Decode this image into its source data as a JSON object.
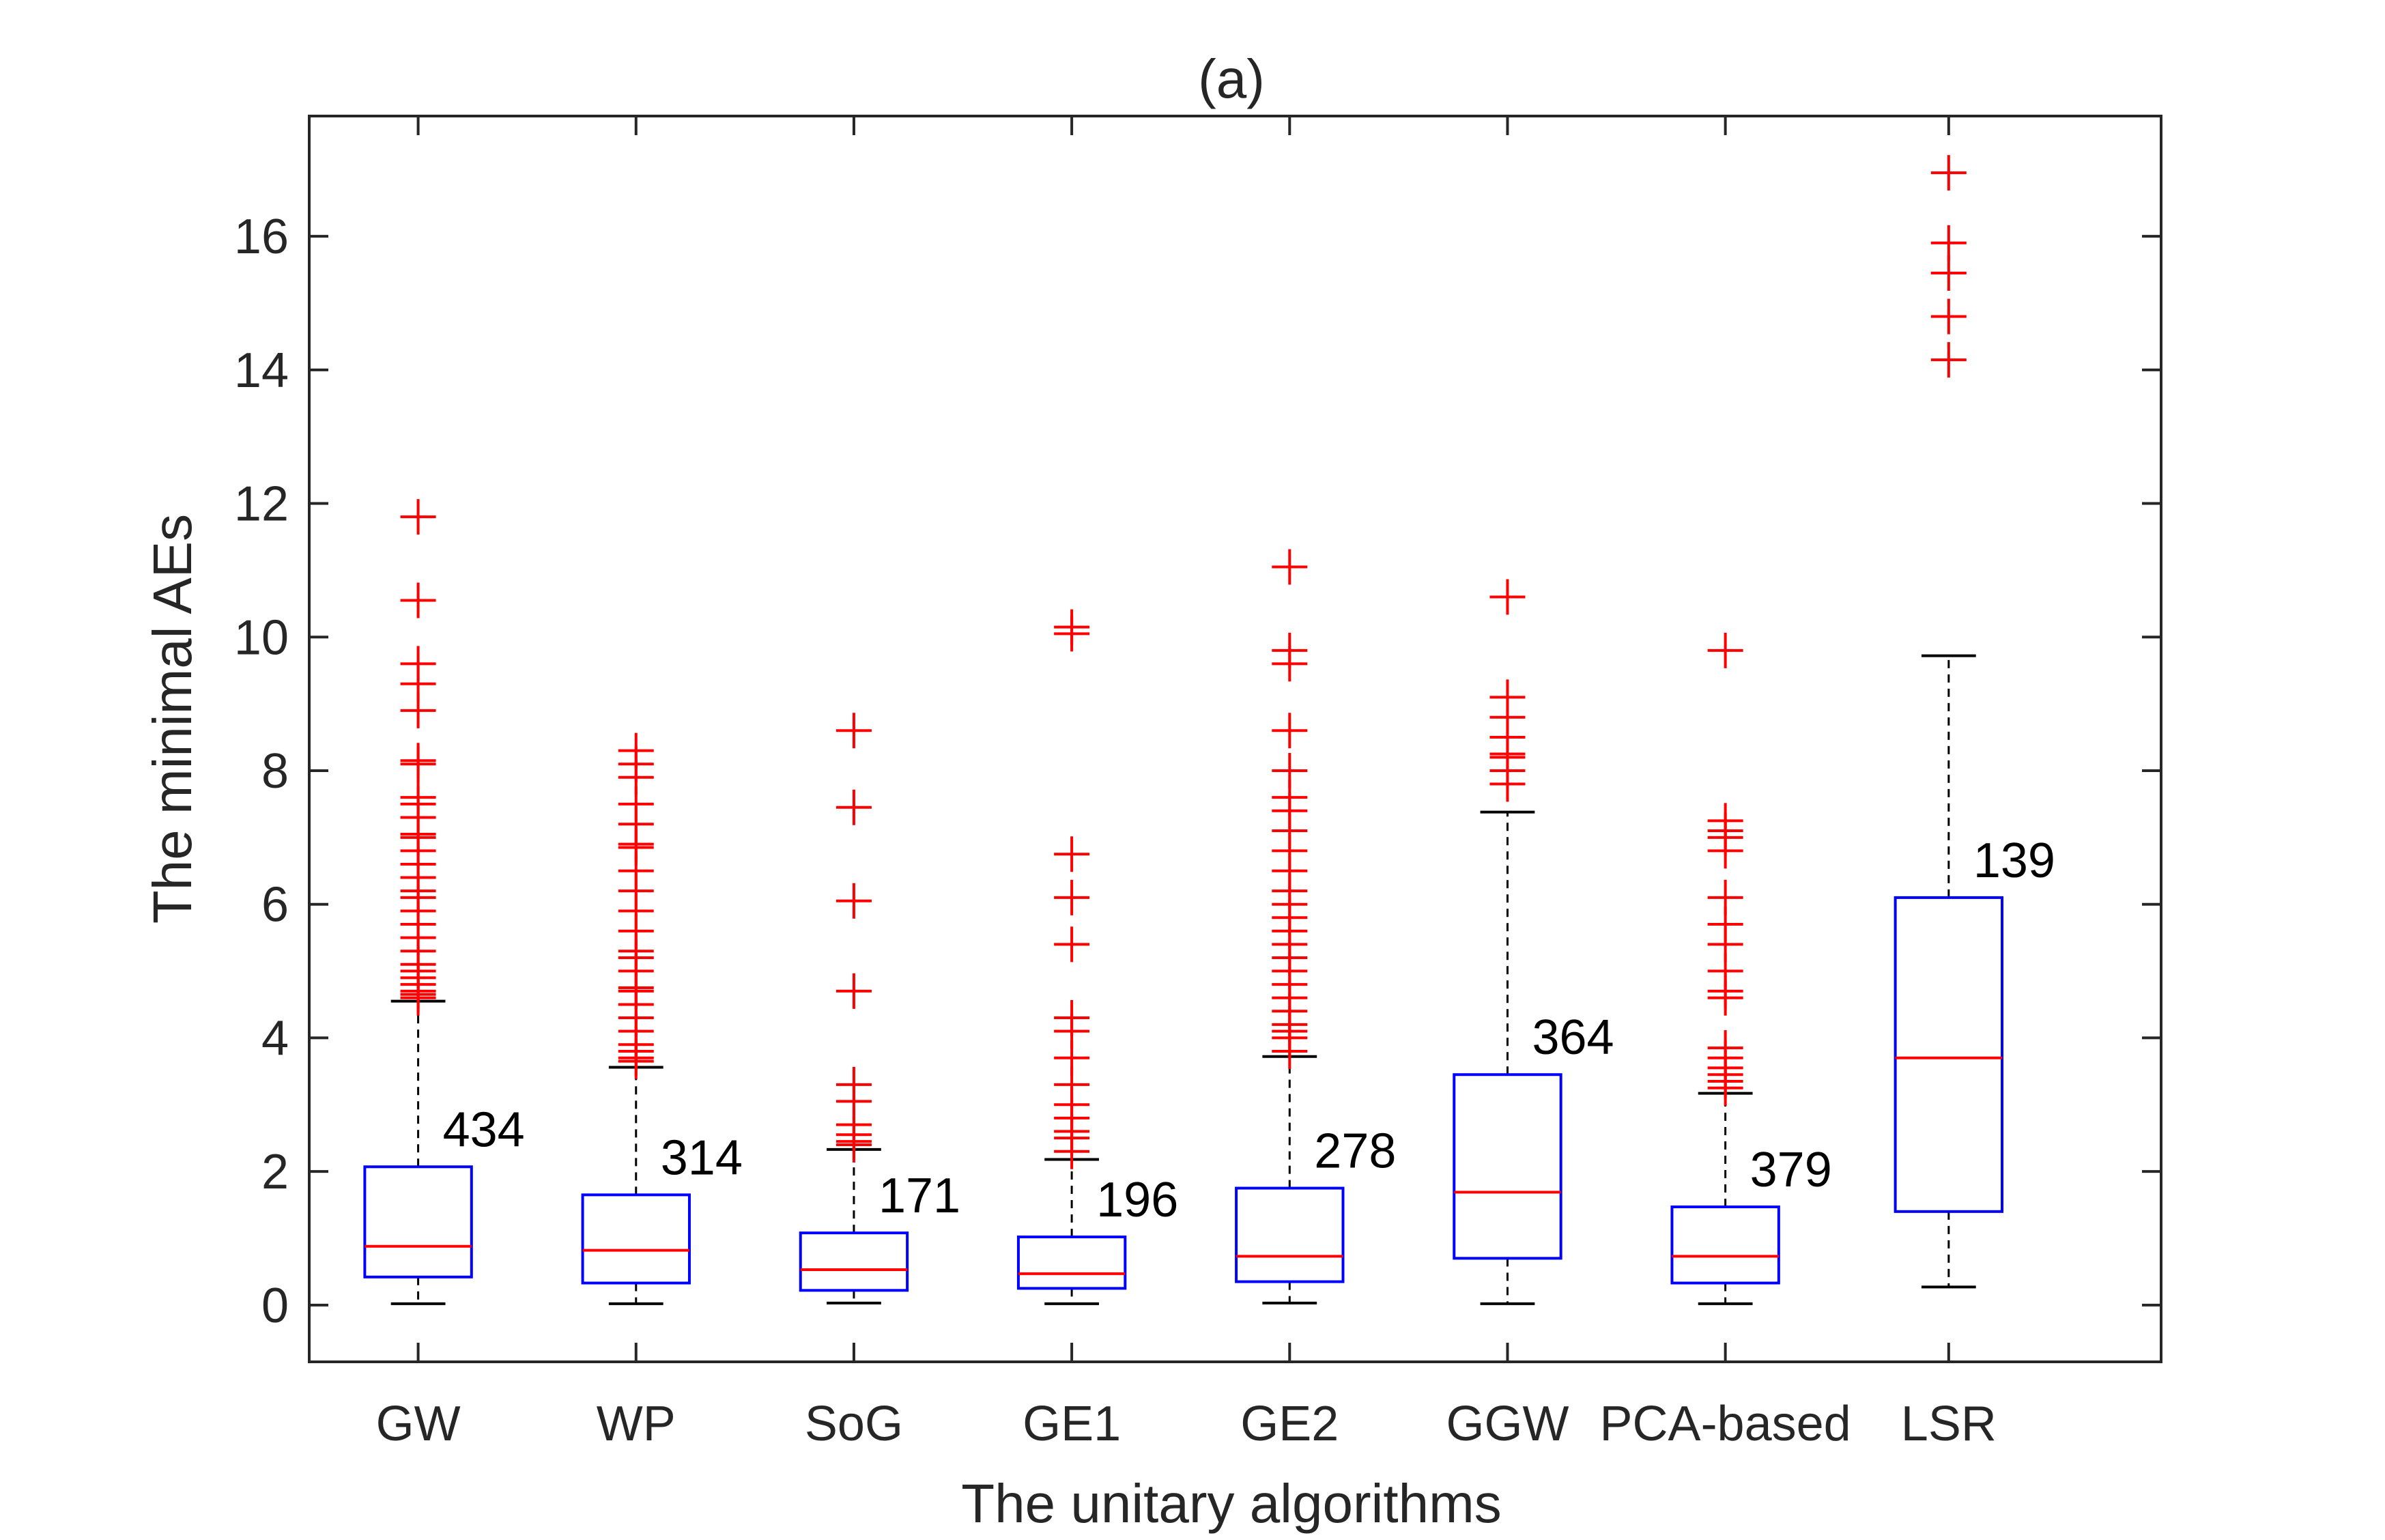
{
  "chart_data": {
    "type": "box",
    "title": "(a)",
    "xlabel": "The unitary algorithms",
    "ylabel": "The minimal AEs",
    "ylim": [
      -0.85,
      17.8
    ],
    "yticks": [
      0,
      2,
      4,
      6,
      8,
      10,
      12,
      14,
      16
    ],
    "grid": false,
    "categories": [
      "GW",
      "WP",
      "SoG",
      "GE1",
      "GE2",
      "GGW",
      "PCA-based",
      "LSR"
    ],
    "series": [
      {
        "name": "GW",
        "whisker_low": 0.02,
        "q1": 0.42,
        "median": 0.88,
        "q3": 2.07,
        "whisker_high": 4.55,
        "outlier_count_label": "434",
        "outliers": [
          4.6,
          4.65,
          4.7,
          4.8,
          4.9,
          5.0,
          5.1,
          5.3,
          5.5,
          5.7,
          5.9,
          6.1,
          6.2,
          6.4,
          6.6,
          6.8,
          7.0,
          7.05,
          7.3,
          7.5,
          7.6,
          8.1,
          8.15,
          8.9,
          9.3,
          9.6,
          10.55,
          11.8
        ]
      },
      {
        "name": "WP",
        "whisker_low": 0.02,
        "q1": 0.33,
        "median": 0.82,
        "q3": 1.65,
        "whisker_high": 3.56,
        "outlier_count_label": "314",
        "outliers": [
          3.65,
          3.7,
          3.8,
          3.9,
          4.1,
          4.3,
          4.5,
          4.7,
          4.75,
          5.0,
          5.2,
          5.3,
          5.6,
          5.9,
          6.2,
          6.5,
          6.85,
          6.9,
          7.2,
          7.5,
          7.9,
          8.1,
          8.3
        ]
      },
      {
        "name": "SoG",
        "whisker_low": 0.03,
        "q1": 0.22,
        "median": 0.53,
        "q3": 1.08,
        "whisker_high": 2.33,
        "outlier_count_label": "171",
        "outliers": [
          2.4,
          2.45,
          2.55,
          2.7,
          3.05,
          3.3,
          4.7,
          6.05,
          7.45,
          8.6
        ]
      },
      {
        "name": "GE1",
        "whisker_low": 0.02,
        "q1": 0.25,
        "median": 0.47,
        "q3": 1.02,
        "whisker_high": 2.18,
        "outlier_count_label": "196",
        "outliers": [
          2.3,
          2.5,
          2.6,
          2.8,
          3.0,
          3.3,
          3.7,
          4.1,
          4.3,
          5.4,
          6.1,
          6.75,
          10.05,
          10.15
        ]
      },
      {
        "name": "GE2",
        "whisker_low": 0.03,
        "q1": 0.35,
        "median": 0.73,
        "q3": 1.75,
        "whisker_high": 3.72,
        "outlier_count_label": "278",
        "outliers": [
          3.8,
          4.0,
          4.1,
          4.2,
          4.4,
          4.6,
          4.8,
          5.0,
          5.2,
          5.4,
          5.6,
          5.8,
          6.0,
          6.2,
          6.5,
          6.8,
          7.1,
          7.4,
          7.6,
          8.0,
          8.6,
          9.6,
          9.8,
          11.05
        ]
      },
      {
        "name": "GGW",
        "whisker_low": 0.02,
        "q1": 0.7,
        "median": 1.69,
        "q3": 3.45,
        "whisker_high": 7.38,
        "outlier_count_label": "364",
        "outliers": [
          7.8,
          8.0,
          8.2,
          8.25,
          8.5,
          8.8,
          9.1,
          10.6
        ]
      },
      {
        "name": "PCA-based",
        "whisker_low": 0.02,
        "q1": 0.33,
        "median": 0.73,
        "q3": 1.47,
        "whisker_high": 3.17,
        "outlier_count_label": "379",
        "outliers": [
          3.25,
          3.35,
          3.45,
          3.55,
          3.7,
          3.85,
          4.6,
          4.7,
          5.0,
          5.4,
          5.7,
          6.1,
          6.8,
          7.0,
          7.1,
          7.25,
          9.8
        ]
      },
      {
        "name": "LSR",
        "whisker_low": 0.27,
        "q1": 1.4,
        "median": 3.7,
        "q3": 6.1,
        "whisker_high": 9.72,
        "outlier_count_label": "139",
        "outliers": [
          14.15,
          14.8,
          15.45,
          15.9,
          16.95
        ]
      }
    ],
    "colors": {
      "box": "#0000ff",
      "median": "#ff0000",
      "outlier": "#ff0000",
      "whisker": "#000000",
      "axis": "#262626"
    }
  }
}
